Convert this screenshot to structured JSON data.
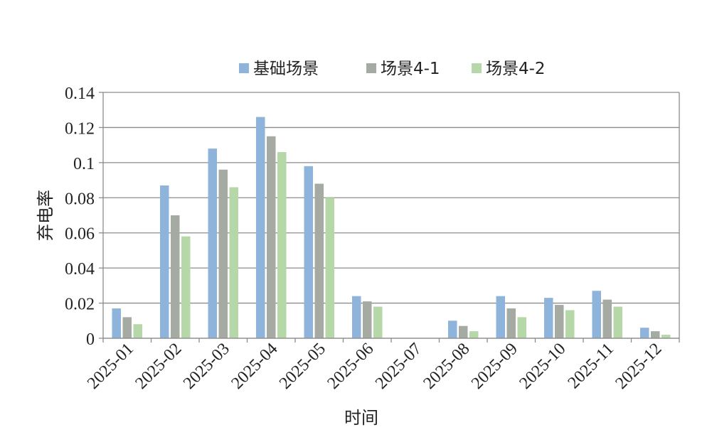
{
  "chart_data": {
    "type": "bar",
    "title": "",
    "xlabel": "时间",
    "ylabel": "弃电率",
    "ylim": [
      0,
      0.14
    ],
    "yticks": [
      "0",
      "0.02",
      "0.04",
      "0.06",
      "0.08",
      "0.1",
      "0.12",
      "0.14"
    ],
    "grid": true,
    "legend_position": "top",
    "categories": [
      "2025-01",
      "2025-02",
      "2025-03",
      "2025-04",
      "2025-05",
      "2025-06",
      "2025-07",
      "2025-08",
      "2025-09",
      "2025-10",
      "2025-11",
      "2025-12"
    ],
    "series": [
      {
        "name": "基础场景",
        "color": "#8fb4db",
        "values": [
          0.017,
          0.087,
          0.108,
          0.126,
          0.098,
          0.024,
          0,
          0.01,
          0.024,
          0.023,
          0.027,
          0.006
        ]
      },
      {
        "name": "场景4-1",
        "color": "#a5aba3",
        "values": [
          0.012,
          0.07,
          0.096,
          0.115,
          0.088,
          0.021,
          0,
          0.007,
          0.017,
          0.019,
          0.022,
          0.004
        ]
      },
      {
        "name": "场景4-2",
        "color": "#b6d7a8",
        "values": [
          0.008,
          0.058,
          0.086,
          0.106,
          0.08,
          0.018,
          0,
          0.004,
          0.012,
          0.016,
          0.018,
          0.002
        ]
      }
    ]
  }
}
